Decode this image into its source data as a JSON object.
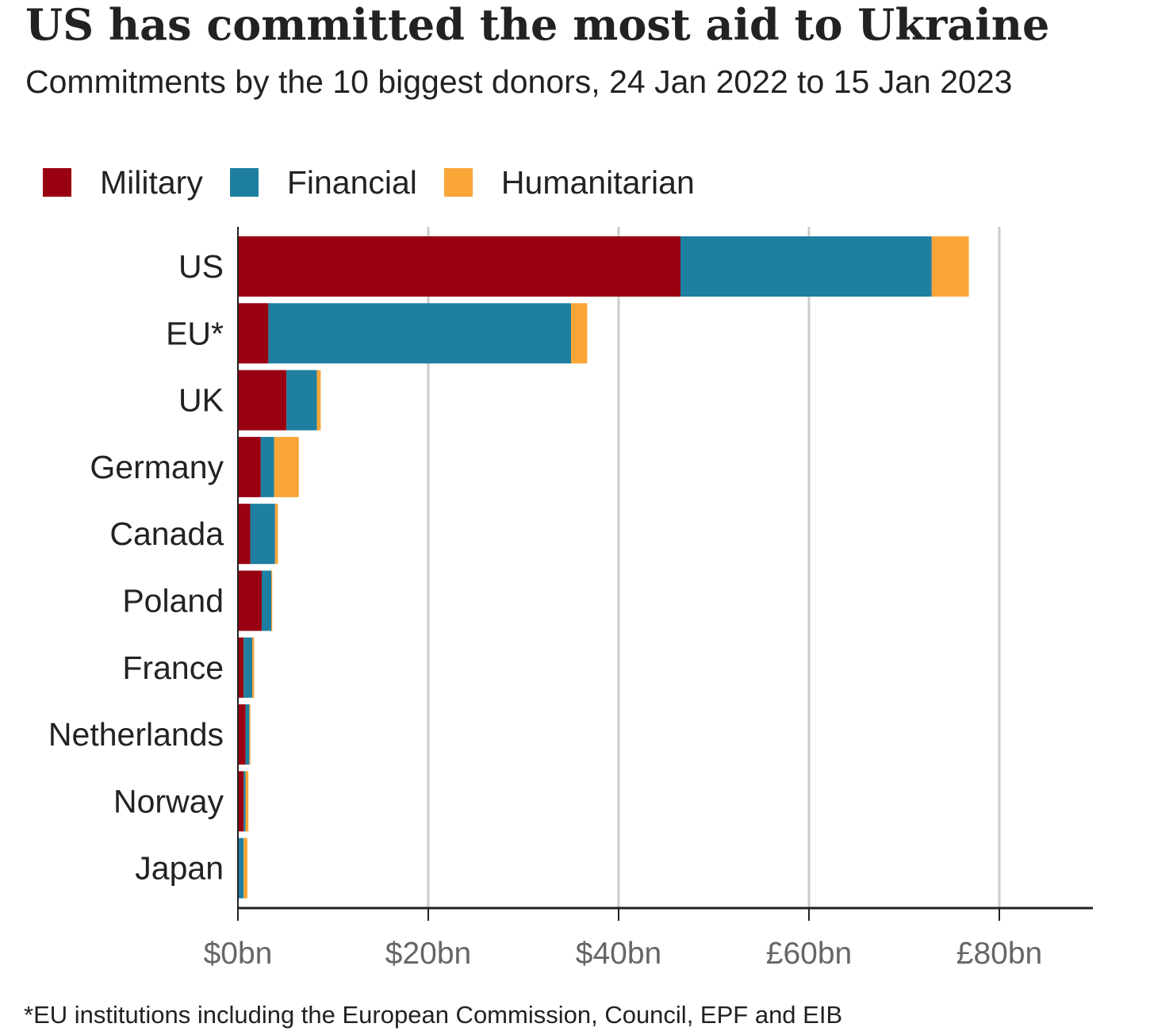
{
  "header": {
    "title": "US has committed the most aid to Ukraine",
    "subtitle": "Commitments by the 10 biggest donors, 24 Jan 2022 to 15 Jan 2023"
  },
  "legend": [
    {
      "label": "Military",
      "color": "#990011"
    },
    {
      "label": "Financial",
      "color": "#1e7fa0"
    },
    {
      "label": "Humanitarian",
      "color": "#faa538"
    }
  ],
  "footnote": "*EU institutions including the European Commission, Council, EPF and EIB",
  "chart_data": {
    "type": "bar",
    "orientation": "horizontal",
    "stacked": true,
    "categories": [
      "US",
      "EU*",
      "UK",
      "Germany",
      "Canada",
      "Poland",
      "France",
      "Netherlands",
      "Norway",
      "Japan"
    ],
    "series": [
      {
        "name": "Military",
        "color": "#990011",
        "values": [
          46.5,
          3.2,
          5.1,
          2.4,
          1.3,
          2.5,
          0.6,
          0.8,
          0.6,
          0.0
        ]
      },
      {
        "name": "Financial",
        "color": "#1e7fa0",
        "values": [
          26.4,
          31.8,
          3.2,
          1.4,
          2.6,
          1.0,
          0.9,
          0.4,
          0.2,
          0.6
        ]
      },
      {
        "name": "Humanitarian",
        "color": "#faa538",
        "values": [
          3.9,
          1.7,
          0.4,
          2.6,
          0.3,
          0.1,
          0.2,
          0.1,
          0.3,
          0.4
        ]
      }
    ],
    "xticks": [
      0,
      20,
      40,
      60,
      80
    ],
    "xtick_labels": [
      "$0bn",
      "$20bn",
      "$40bn",
      "£60bn",
      "£80bn"
    ],
    "xlim": [
      0,
      90
    ],
    "grid": "vertical",
    "legend_position": "top-left"
  }
}
